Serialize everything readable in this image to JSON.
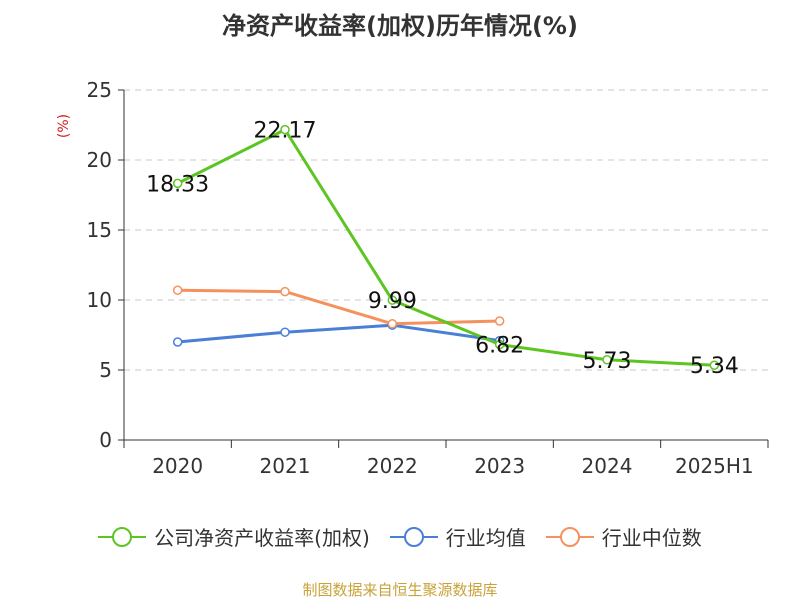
{
  "chart_data": {
    "type": "line",
    "title": "净资产收益率(加权)历年情况(%)",
    "ylabel": "(%)",
    "xlabel": "",
    "categories": [
      "2020",
      "2021",
      "2022",
      "2023",
      "2024",
      "2025H1"
    ],
    "ylim": [
      0,
      25
    ],
    "yticks": [
      0,
      5,
      10,
      15,
      20,
      25
    ],
    "grid": true,
    "legend_position": "bottom",
    "series": [
      {
        "name": "公司净资产收益率(加权)",
        "color": "#5cc522",
        "values": [
          18.33,
          22.17,
          9.99,
          6.82,
          5.73,
          5.34
        ],
        "labels": [
          "18.33",
          "22.17",
          "9.99",
          "6.82",
          "5.73",
          "5.34"
        ]
      },
      {
        "name": "行业均值",
        "color": "#4a7fd6",
        "values": [
          7.0,
          7.7,
          8.2,
          7.1,
          null,
          null
        ]
      },
      {
        "name": "行业中位数",
        "color": "#f4915d",
        "values": [
          10.7,
          10.6,
          8.3,
          8.5,
          null,
          null
        ]
      }
    ]
  },
  "footer": "制图数据来自恒生聚源数据库"
}
